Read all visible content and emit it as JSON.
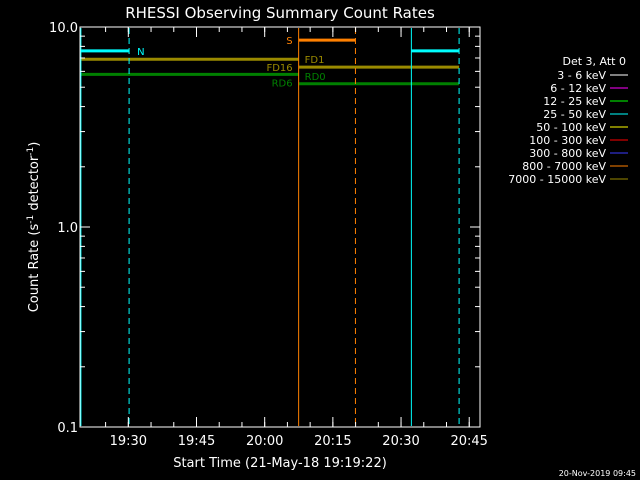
{
  "colors": {
    "background": "#000000",
    "axes": "#ffffff",
    "cyan": "#00ffff",
    "olive": "#9a8a00",
    "green": "#008000",
    "orange": "#ff8000",
    "magenta": "#ff00ff",
    "lime": "#00ff00",
    "yellow": "#ffff00",
    "red": "#ff0000",
    "blue": "#3b3bff",
    "white": "#ffffff"
  },
  "chart_data": {
    "type": "line",
    "title": "RHESSI Observing Summary Count Rates",
    "xlabel": "Start Time (21-May-18 19:19:22)",
    "ylabel_main": "Count Rate (s",
    "ylabel_sup1": "-1",
    "ylabel_mid": " detector",
    "ylabel_sup2": "-1",
    "ylabel_end": ")",
    "yscale": "log",
    "ylim": [
      0.1,
      10.0
    ],
    "xlim_minutes": [
      0,
      88
    ],
    "yticks": [
      {
        "value": 0.1,
        "label": "0.1"
      },
      {
        "value": 1.0,
        "label": "1.0"
      },
      {
        "value": 10.0,
        "label": "10.0"
      }
    ],
    "xticks": [
      {
        "minute": 10.63,
        "label": "19:30"
      },
      {
        "minute": 25.63,
        "label": "19:45"
      },
      {
        "minute": 40.63,
        "label": "20:00"
      },
      {
        "minute": 55.63,
        "label": "20:15"
      },
      {
        "minute": 70.63,
        "label": "20:30"
      },
      {
        "minute": 85.63,
        "label": "20:45"
      }
    ],
    "series": [
      {
        "segments": [
          [
            0,
            9.8,
            56.0,
            9.8
          ],
          [
            56.0,
            9.8,
            88.0,
            9.8
          ]
        ],
        "color": "cyan"
      }
    ],
    "flag_bars": [
      {
        "label": "N",
        "color": "cyan",
        "x0": 0.2,
        "x1": 10.8,
        "y": 7.6,
        "label_side": "right"
      },
      {
        "label": "N",
        "color": "cyan",
        "x0": 72.9,
        "x1": 83.4,
        "y": 7.6,
        "label_side": "none"
      },
      {
        "label": "S",
        "color": "orange",
        "x0": 48.1,
        "x1": 60.6,
        "y": 8.6,
        "label_side": "left"
      },
      {
        "label": "FD1",
        "color": "olive",
        "x0": 48.1,
        "x1": 83.4,
        "y": 6.3,
        "label_side": "above-right"
      },
      {
        "label": "FD16",
        "color": "olive",
        "x0": 0.2,
        "x1": 48.1,
        "y": 6.9,
        "label_side": "below-left"
      },
      {
        "label": "RD0",
        "color": "green",
        "x0": 48.1,
        "x1": 83.4,
        "y": 5.2,
        "label_side": "above-right"
      },
      {
        "label": "RD6",
        "color": "green",
        "x0": 0.2,
        "x1": 48.1,
        "y": 5.8,
        "label_side": "below-left"
      }
    ],
    "vlines": [
      {
        "minute": 0.2,
        "color": "cyan",
        "style": "solid"
      },
      {
        "minute": 10.8,
        "color": "cyan",
        "style": "dashed"
      },
      {
        "minute": 48.1,
        "color": "orange",
        "style": "solid"
      },
      {
        "minute": 60.6,
        "color": "orange",
        "style": "dashed"
      },
      {
        "minute": 72.9,
        "color": "cyan",
        "style": "solid"
      },
      {
        "minute": 83.4,
        "color": "cyan",
        "style": "dashed"
      }
    ],
    "legend": {
      "placement": "right",
      "header": "Det 3, Att 0",
      "entries": [
        {
          "label": "3 - 6 keV",
          "color": "white"
        },
        {
          "label": "6 - 12 keV",
          "color": "magenta"
        },
        {
          "label": "12 - 25 keV",
          "color": "lime"
        },
        {
          "label": "25 - 50 keV",
          "color": "cyan"
        },
        {
          "label": "50 - 100 keV",
          "color": "yellow"
        },
        {
          "label": "100 - 300 keV",
          "color": "red"
        },
        {
          "label": "300 - 800 keV",
          "color": "blue"
        },
        {
          "label": "800 - 7000 keV",
          "color": "orange"
        },
        {
          "label": "7000 - 15000 keV",
          "color": "olive"
        }
      ]
    },
    "footer_timestamp": "20-Nov-2019 09:45"
  }
}
